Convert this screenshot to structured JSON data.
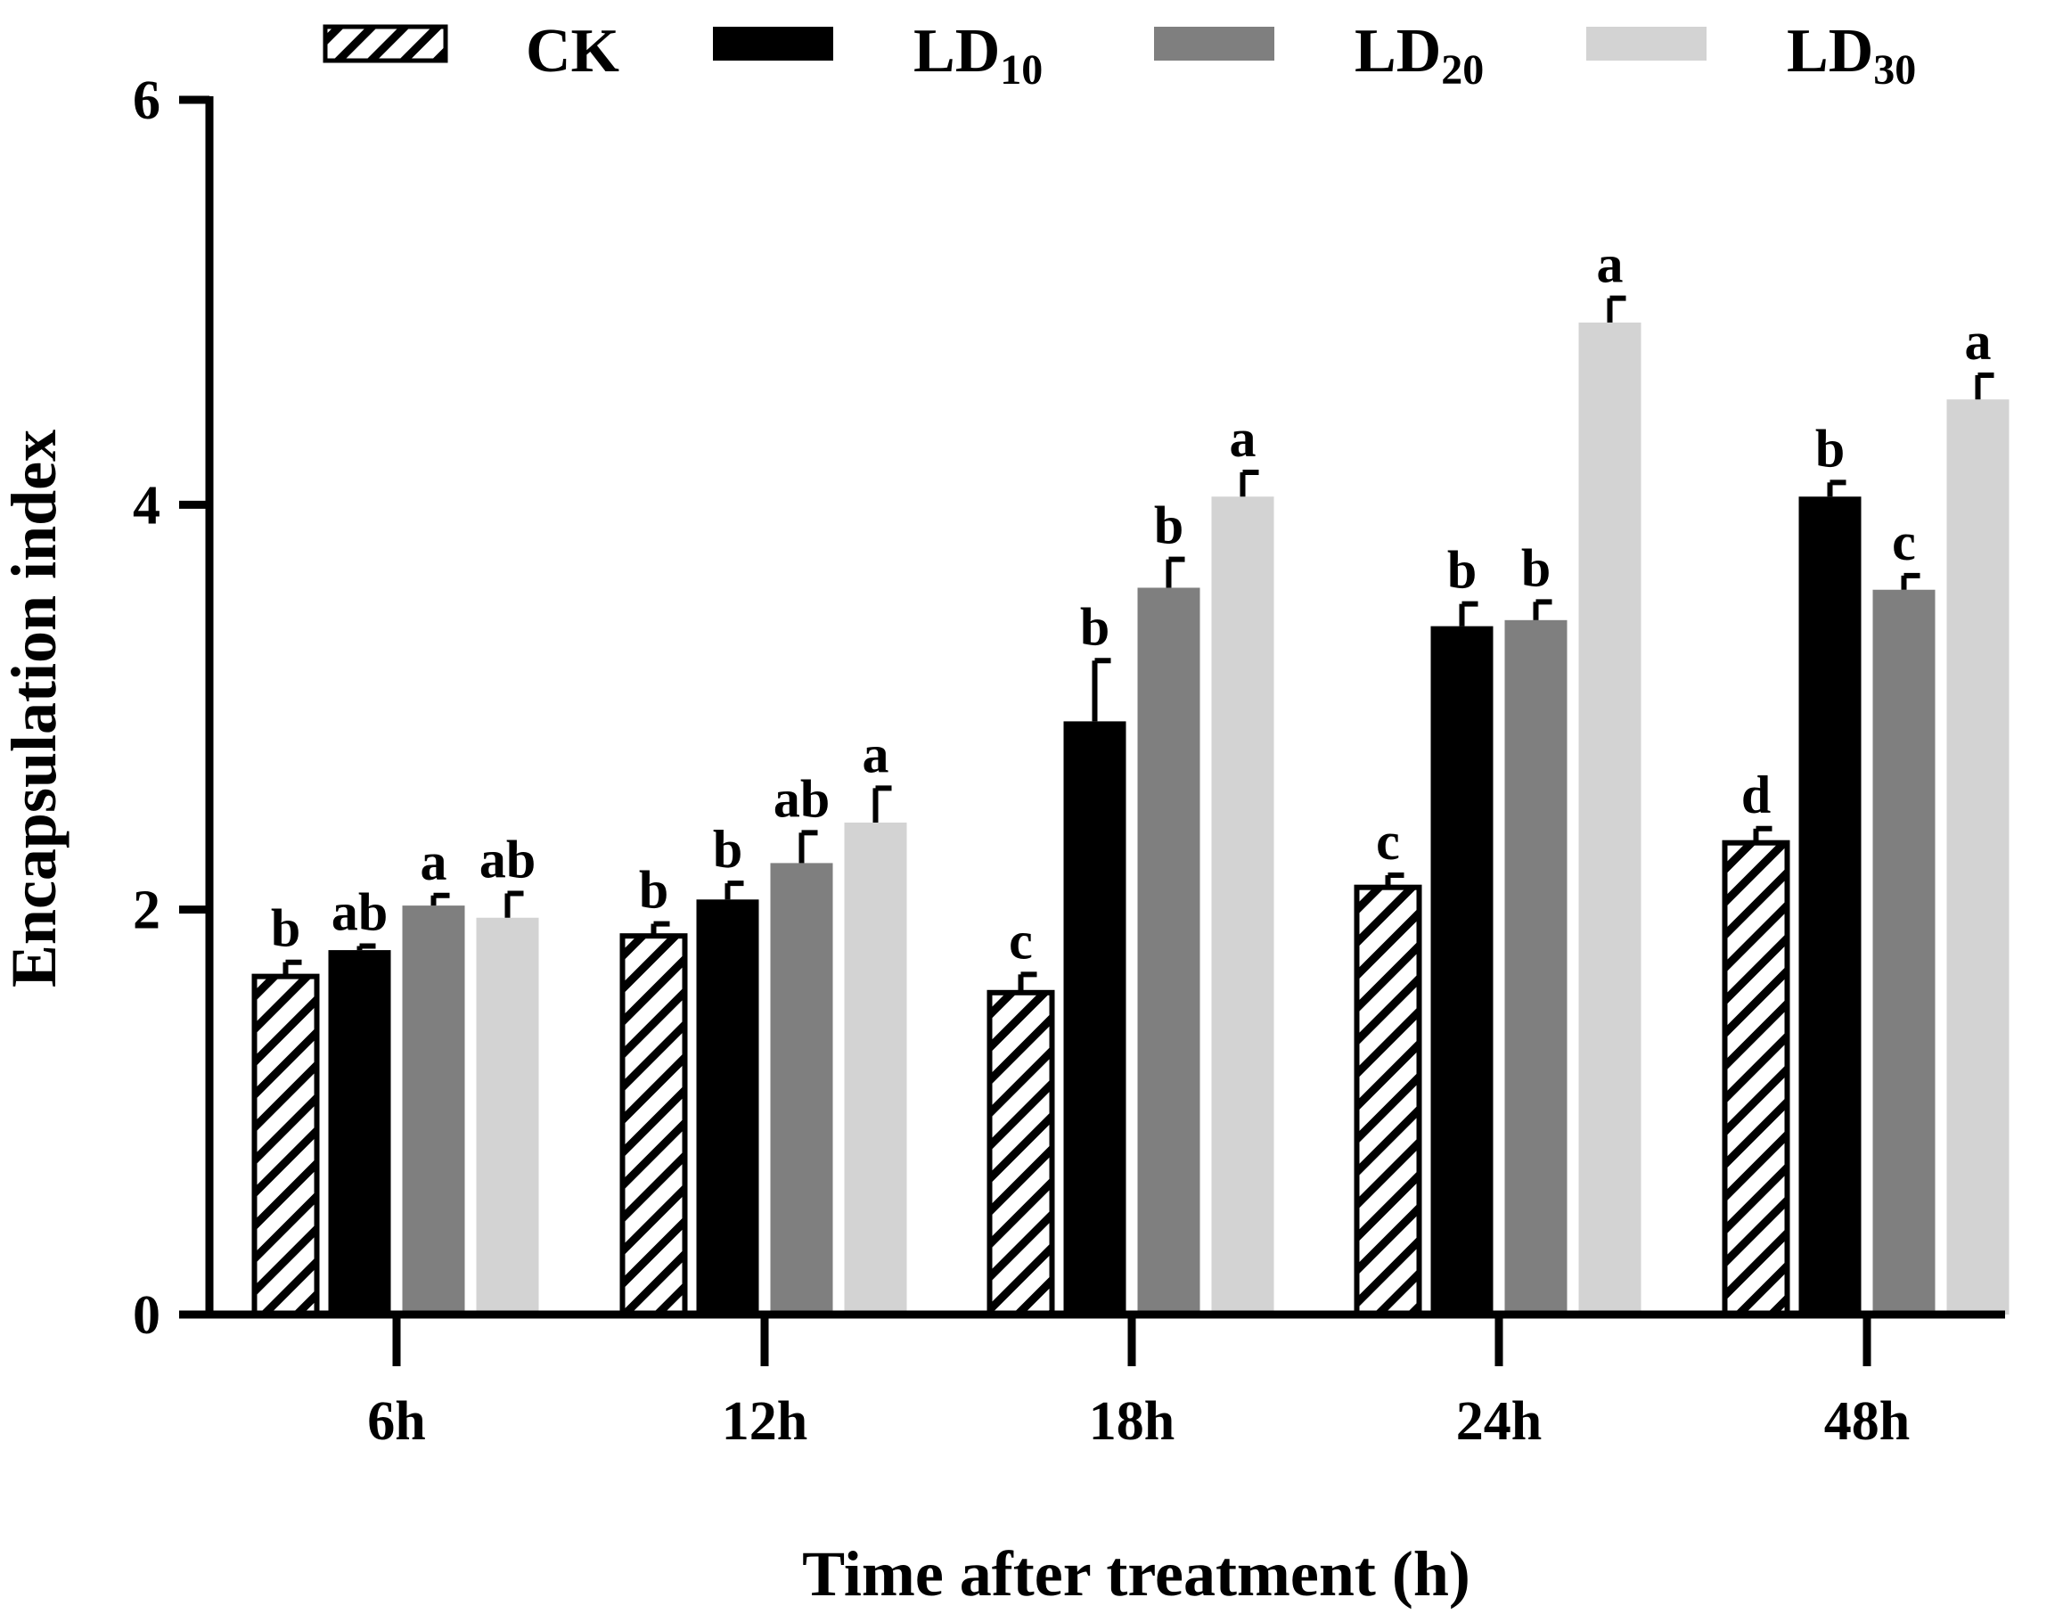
{
  "chart_data": {
    "type": "bar",
    "title": "",
    "xlabel": "Time after treatment (h)",
    "ylabel": "Encapsulation index",
    "ylim": [
      0,
      6
    ],
    "yticks": [
      "0",
      "2",
      "4",
      "6"
    ],
    "categories": [
      "6h",
      "12h",
      "18h",
      "24h",
      "48h"
    ],
    "legend_position": "top",
    "series": [
      {
        "name": "CK",
        "label_main": "CK",
        "label_sub": "",
        "fill": "hatch",
        "color": "#000000",
        "values": [
          1.67,
          1.87,
          1.59,
          2.11,
          2.33
        ],
        "errors": [
          0.07,
          0.06,
          0.09,
          0.06,
          0.07
        ],
        "letters": [
          "b",
          "b",
          "c",
          "c",
          "d"
        ]
      },
      {
        "name": "LD10",
        "label_main": "LD",
        "label_sub": "10",
        "fill": "solid",
        "color": "#000000",
        "values": [
          1.8,
          2.05,
          2.93,
          3.4,
          4.04
        ],
        "errors": [
          0.02,
          0.08,
          0.3,
          0.11,
          0.07
        ],
        "letters": [
          "ab",
          "b",
          "b",
          "b",
          "b"
        ]
      },
      {
        "name": "LD20",
        "label_main": "LD",
        "label_sub": "20",
        "fill": "solid",
        "color": "#7f7f7f",
        "values": [
          2.02,
          2.23,
          3.59,
          3.43,
          3.58
        ],
        "errors": [
          0.05,
          0.15,
          0.14,
          0.09,
          0.07
        ],
        "letters": [
          "a",
          "ab",
          "b",
          "b",
          "c"
        ]
      },
      {
        "name": "LD30",
        "label_main": "LD",
        "label_sub": "30",
        "fill": "solid",
        "color": "#d3d3d3",
        "values": [
          1.96,
          2.43,
          4.04,
          4.9,
          4.52
        ],
        "errors": [
          0.12,
          0.17,
          0.12,
          0.12,
          0.12
        ],
        "letters": [
          "ab",
          "a",
          "a",
          "a",
          "a"
        ]
      }
    ]
  }
}
